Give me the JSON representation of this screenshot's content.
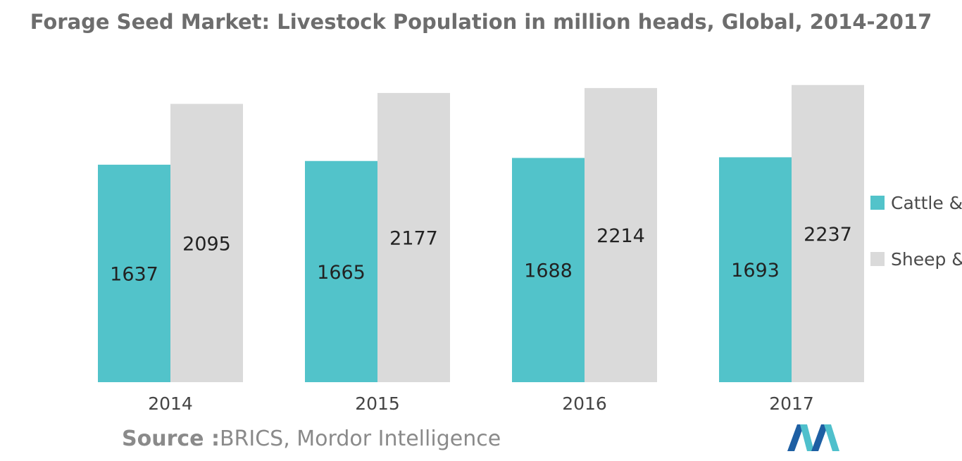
{
  "title": "Forage Seed Market: Livestock Population in million heads, Global, 2014-2017",
  "source": {
    "label": "Source :",
    "text": "BRICS, Mordor Intelligence"
  },
  "colors": {
    "series_1": "#52c3ca",
    "series_2": "#dadada",
    "logo_dark": "#1e5fa3",
    "logo_light": "#4fc0cc"
  },
  "logo": {
    "icon": "mordor-intelligence-logo-icon"
  },
  "chart_data": {
    "type": "bar",
    "title": "Forage Seed Market: Livestock Population in million heads, Global, 2014-2017",
    "categories": [
      "2014",
      "2015",
      "2016",
      "2017"
    ],
    "series": [
      {
        "name": "Cattle &",
        "values": [
          1637,
          1665,
          1688,
          1693
        ]
      },
      {
        "name": "Sheep &",
        "values": [
          2095,
          2177,
          2214,
          2237
        ]
      }
    ],
    "data_labels": true,
    "legend_position": "right",
    "grid": false,
    "y_axis_visible": false,
    "ylim": [
      0,
      2310
    ]
  }
}
